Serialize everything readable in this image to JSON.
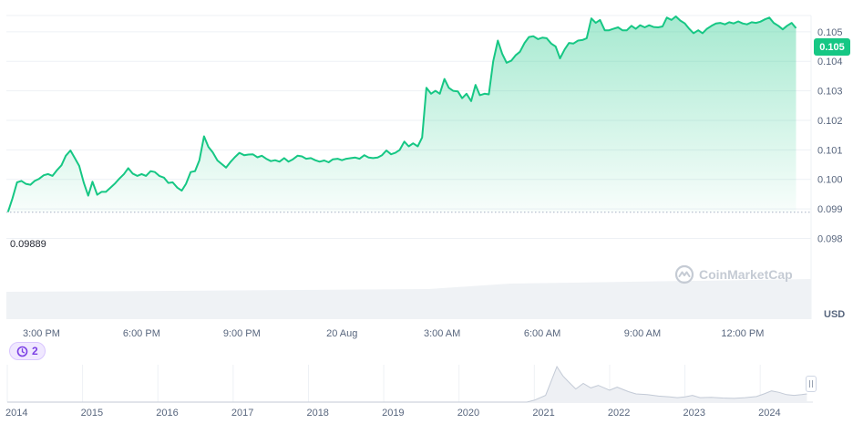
{
  "chart_data": {
    "type": "area",
    "currency_label": "USD",
    "current_price": "0.105",
    "reference_price": "0.09889",
    "reference_value": 0.09889,
    "ylim": [
      0.0978,
      0.10555
    ],
    "y_ticks": [
      {
        "value": 0.105,
        "label": "0.105"
      },
      {
        "value": 0.104,
        "label": "0.104"
      },
      {
        "value": 0.103,
        "label": "0.103"
      },
      {
        "value": 0.102,
        "label": "0.102"
      },
      {
        "value": 0.101,
        "label": "0.101"
      },
      {
        "value": 0.1,
        "label": "0.100"
      },
      {
        "value": 0.099,
        "label": "0.099"
      },
      {
        "value": 0.098,
        "label": "0.098"
      }
    ],
    "x_ticks": [
      {
        "hours": 1.0,
        "label": "3:00 PM"
      },
      {
        "hours": 4.0,
        "label": "6:00 PM"
      },
      {
        "hours": 7.0,
        "label": "9:00 PM"
      },
      {
        "hours": 10.0,
        "label": "20 Aug"
      },
      {
        "hours": 13.0,
        "label": "3:00 AM"
      },
      {
        "hours": 16.0,
        "label": "6:00 AM"
      },
      {
        "hours": 19.0,
        "label": "9:00 AM"
      },
      {
        "hours": 22.0,
        "label": "12:00 PM"
      }
    ],
    "x_range_hours": [
      -0.05,
      24.05
    ],
    "series": [
      {
        "color": "#16c784",
        "points": [
          [
            0.0,
            0.0989
          ],
          [
            0.13,
            0.09935
          ],
          [
            0.27,
            0.0999
          ],
          [
            0.4,
            0.09995
          ],
          [
            0.53,
            0.09985
          ],
          [
            0.67,
            0.09982
          ],
          [
            0.8,
            0.09995
          ],
          [
            0.93,
            0.10002
          ],
          [
            1.07,
            0.10014
          ],
          [
            1.2,
            0.10018
          ],
          [
            1.33,
            0.10012
          ],
          [
            1.47,
            0.10032
          ],
          [
            1.6,
            0.10048
          ],
          [
            1.73,
            0.1008
          ],
          [
            1.87,
            0.10098
          ],
          [
            2.0,
            0.10072
          ],
          [
            2.13,
            0.10046
          ],
          [
            2.27,
            0.09988
          ],
          [
            2.4,
            0.09945
          ],
          [
            2.53,
            0.09992
          ],
          [
            2.67,
            0.09948
          ],
          [
            2.8,
            0.09958
          ],
          [
            2.93,
            0.09958
          ],
          [
            3.07,
            0.09972
          ],
          [
            3.2,
            0.09986
          ],
          [
            3.33,
            0.10002
          ],
          [
            3.47,
            0.10018
          ],
          [
            3.6,
            0.10038
          ],
          [
            3.73,
            0.1002
          ],
          [
            3.87,
            0.10012
          ],
          [
            4.0,
            0.10018
          ],
          [
            4.13,
            0.10012
          ],
          [
            4.27,
            0.10028
          ],
          [
            4.4,
            0.10025
          ],
          [
            4.53,
            0.10012
          ],
          [
            4.67,
            0.10006
          ],
          [
            4.8,
            0.09988
          ],
          [
            4.93,
            0.0999
          ],
          [
            5.07,
            0.09972
          ],
          [
            5.2,
            0.09962
          ],
          [
            5.33,
            0.09985
          ],
          [
            5.47,
            0.10025
          ],
          [
            5.6,
            0.10028
          ],
          [
            5.73,
            0.10065
          ],
          [
            5.87,
            0.10146
          ],
          [
            6.0,
            0.1011
          ],
          [
            6.13,
            0.10092
          ],
          [
            6.27,
            0.10064
          ],
          [
            6.4,
            0.10052
          ],
          [
            6.53,
            0.1004
          ],
          [
            6.67,
            0.1006
          ],
          [
            6.8,
            0.10076
          ],
          [
            6.93,
            0.1009
          ],
          [
            7.07,
            0.10082
          ],
          [
            7.2,
            0.10084
          ],
          [
            7.33,
            0.10085
          ],
          [
            7.47,
            0.10075
          ],
          [
            7.6,
            0.1008
          ],
          [
            7.73,
            0.1007
          ],
          [
            7.87,
            0.10062
          ],
          [
            8.0,
            0.10065
          ],
          [
            8.13,
            0.1006
          ],
          [
            8.27,
            0.10072
          ],
          [
            8.4,
            0.1006
          ],
          [
            8.53,
            0.10068
          ],
          [
            8.67,
            0.1008
          ],
          [
            8.8,
            0.10078
          ],
          [
            8.93,
            0.1007
          ],
          [
            9.07,
            0.10072
          ],
          [
            9.2,
            0.10065
          ],
          [
            9.33,
            0.1006
          ],
          [
            9.47,
            0.10064
          ],
          [
            9.6,
            0.10058
          ],
          [
            9.73,
            0.10068
          ],
          [
            9.87,
            0.1007
          ],
          [
            10.0,
            0.10065
          ],
          [
            10.13,
            0.1007
          ],
          [
            10.27,
            0.10072
          ],
          [
            10.4,
            0.10074
          ],
          [
            10.53,
            0.1007
          ],
          [
            10.67,
            0.10082
          ],
          [
            10.8,
            0.10074
          ],
          [
            10.93,
            0.10072
          ],
          [
            11.07,
            0.10074
          ],
          [
            11.2,
            0.10082
          ],
          [
            11.33,
            0.10098
          ],
          [
            11.47,
            0.10085
          ],
          [
            11.6,
            0.1009
          ],
          [
            11.73,
            0.101
          ],
          [
            11.87,
            0.10128
          ],
          [
            12.0,
            0.10112
          ],
          [
            12.13,
            0.10122
          ],
          [
            12.27,
            0.10112
          ],
          [
            12.4,
            0.10142
          ],
          [
            12.53,
            0.1031
          ],
          [
            12.67,
            0.1029
          ],
          [
            12.8,
            0.103
          ],
          [
            12.93,
            0.1029
          ],
          [
            13.07,
            0.1034
          ],
          [
            13.2,
            0.1031
          ],
          [
            13.33,
            0.103
          ],
          [
            13.47,
            0.10298
          ],
          [
            13.6,
            0.10275
          ],
          [
            13.73,
            0.1029
          ],
          [
            13.87,
            0.10265
          ],
          [
            14.0,
            0.1032
          ],
          [
            14.13,
            0.10285
          ],
          [
            14.27,
            0.1029
          ],
          [
            14.4,
            0.10288
          ],
          [
            14.53,
            0.104
          ],
          [
            14.67,
            0.1047
          ],
          [
            14.8,
            0.10425
          ],
          [
            14.93,
            0.10395
          ],
          [
            15.07,
            0.10402
          ],
          [
            15.2,
            0.1042
          ],
          [
            15.33,
            0.10432
          ],
          [
            15.47,
            0.10462
          ],
          [
            15.6,
            0.10482
          ],
          [
            15.73,
            0.10485
          ],
          [
            15.87,
            0.10475
          ],
          [
            16.0,
            0.1048
          ],
          [
            16.13,
            0.10478
          ],
          [
            16.27,
            0.1046
          ],
          [
            16.4,
            0.1045
          ],
          [
            16.53,
            0.1041
          ],
          [
            16.67,
            0.1044
          ],
          [
            16.8,
            0.10462
          ],
          [
            16.93,
            0.1046
          ],
          [
            17.07,
            0.1047
          ],
          [
            17.2,
            0.10472
          ],
          [
            17.33,
            0.10478
          ],
          [
            17.47,
            0.10545
          ],
          [
            17.6,
            0.1053
          ],
          [
            17.73,
            0.1054
          ],
          [
            17.87,
            0.10505
          ],
          [
            18.0,
            0.10505
          ],
          [
            18.13,
            0.1051
          ],
          [
            18.27,
            0.10515
          ],
          [
            18.4,
            0.10505
          ],
          [
            18.53,
            0.10505
          ],
          [
            18.67,
            0.1052
          ],
          [
            18.8,
            0.1051
          ],
          [
            18.93,
            0.10522
          ],
          [
            19.07,
            0.10515
          ],
          [
            19.2,
            0.10522
          ],
          [
            19.33,
            0.10516
          ],
          [
            19.47,
            0.10515
          ],
          [
            19.6,
            0.10518
          ],
          [
            19.73,
            0.10548
          ],
          [
            19.87,
            0.1054
          ],
          [
            20.0,
            0.10552
          ],
          [
            20.13,
            0.10538
          ],
          [
            20.27,
            0.10528
          ],
          [
            20.4,
            0.1051
          ],
          [
            20.53,
            0.10495
          ],
          [
            20.67,
            0.10505
          ],
          [
            20.8,
            0.10495
          ],
          [
            20.93,
            0.1051
          ],
          [
            21.07,
            0.1052
          ],
          [
            21.2,
            0.10528
          ],
          [
            21.33,
            0.1053
          ],
          [
            21.47,
            0.10525
          ],
          [
            21.6,
            0.10532
          ],
          [
            21.73,
            0.10528
          ],
          [
            21.87,
            0.10535
          ],
          [
            22.0,
            0.10528
          ],
          [
            22.13,
            0.10525
          ],
          [
            22.27,
            0.10532
          ],
          [
            22.4,
            0.1053
          ],
          [
            22.53,
            0.10534
          ],
          [
            22.67,
            0.10542
          ],
          [
            22.8,
            0.10548
          ],
          [
            22.93,
            0.1053
          ],
          [
            23.07,
            0.1052
          ],
          [
            23.2,
            0.10508
          ],
          [
            23.33,
            0.1052
          ],
          [
            23.47,
            0.1053
          ],
          [
            23.6,
            0.10512
          ]
        ]
      }
    ],
    "navigator": {
      "x_ticks": [
        "2014",
        "2015",
        "2016",
        "2017",
        "2018",
        "2019",
        "2020",
        "2021",
        "2022",
        "2023",
        "2024"
      ],
      "series": [
        [
          2014.0,
          0
        ],
        [
          2020.9,
          0
        ],
        [
          2021.0,
          0.05
        ],
        [
          2021.15,
          0.18
        ],
        [
          2021.3,
          0.95
        ],
        [
          2021.38,
          0.7
        ],
        [
          2021.45,
          0.55
        ],
        [
          2021.55,
          0.35
        ],
        [
          2021.65,
          0.5
        ],
        [
          2021.75,
          0.38
        ],
        [
          2021.85,
          0.45
        ],
        [
          2022.0,
          0.32
        ],
        [
          2022.1,
          0.4
        ],
        [
          2022.25,
          0.28
        ],
        [
          2022.35,
          0.22
        ],
        [
          2022.5,
          0.2
        ],
        [
          2022.65,
          0.16
        ],
        [
          2022.8,
          0.14
        ],
        [
          2022.9,
          0.12
        ],
        [
          2023.0,
          0.14
        ],
        [
          2023.1,
          0.18
        ],
        [
          2023.2,
          0.12
        ],
        [
          2023.35,
          0.13
        ],
        [
          2023.5,
          0.11
        ],
        [
          2023.65,
          0.1
        ],
        [
          2023.8,
          0.12
        ],
        [
          2023.95,
          0.15
        ],
        [
          2024.05,
          0.22
        ],
        [
          2024.15,
          0.3
        ],
        [
          2024.25,
          0.26
        ],
        [
          2024.35,
          0.2
        ],
        [
          2024.45,
          0.18
        ],
        [
          2024.55,
          0.2
        ],
        [
          2024.62,
          0.22
        ]
      ]
    }
  },
  "badge": {
    "count": "2",
    "icon": "history-icon"
  },
  "watermark": {
    "text": "CoinMarketCap"
  },
  "colors": {
    "accent": "#16c784",
    "badge": "#7b3fe4",
    "volume": "#eff2f5"
  }
}
